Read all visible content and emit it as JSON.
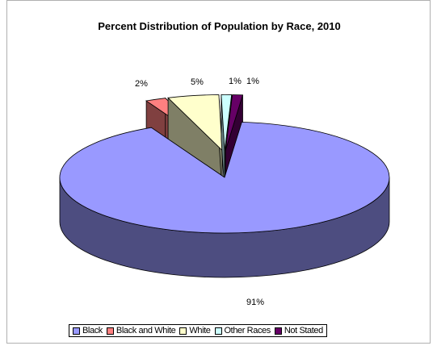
{
  "chart_data": {
    "type": "pie",
    "title": "Percent Distribution of Population by Race, 2010",
    "categories": [
      "Black",
      "Black and White",
      "White",
      "Other Races",
      "Not Stated"
    ],
    "values": [
      91,
      2,
      5,
      1,
      1
    ],
    "labels": [
      "91%",
      "2%",
      "5%",
      "1%",
      "1%"
    ],
    "colors": [
      "#9999ff",
      "#ff8080",
      "#ffffcc",
      "#ccffff",
      "#660066"
    ],
    "side_colors": [
      "#4d4d80",
      "#804040",
      "#7f7f66",
      "#668080",
      "#330033"
    ],
    "legend_position": "bottom",
    "style": "3d-exploded"
  }
}
